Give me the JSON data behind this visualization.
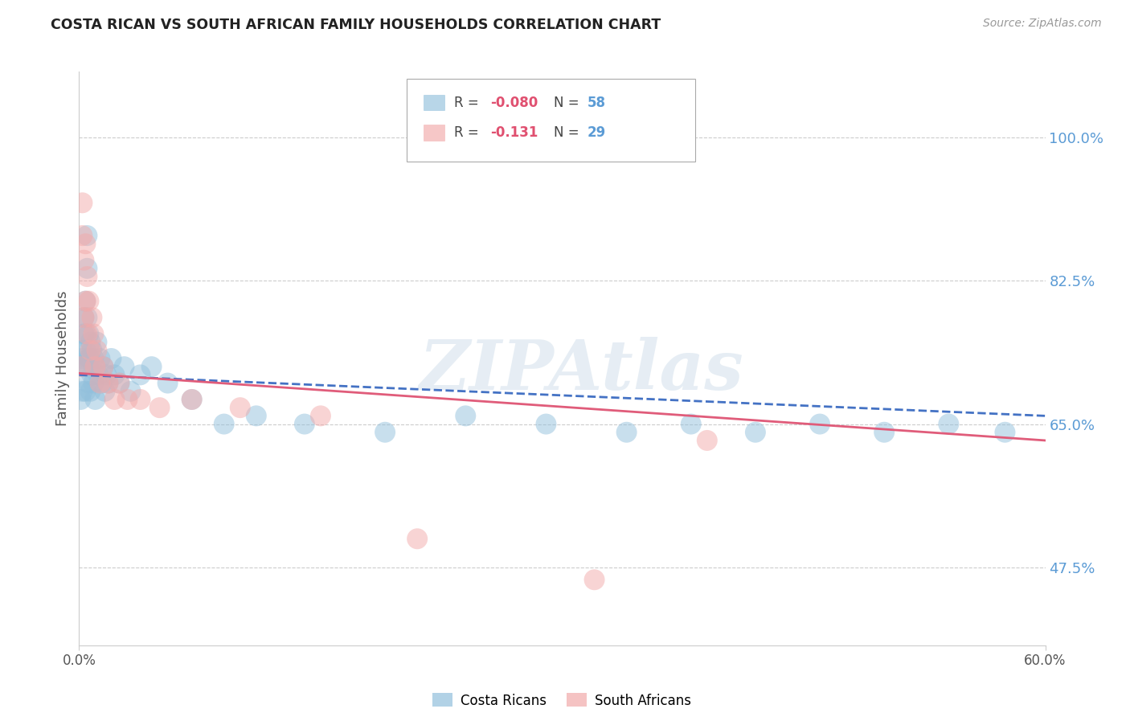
{
  "title": "COSTA RICAN VS SOUTH AFRICAN FAMILY HOUSEHOLDS CORRELATION CHART",
  "source": "Source: ZipAtlas.com",
  "ylabel": "Family Households",
  "watermark": "ZIPAtlas",
  "ytick_labels": [
    "100.0%",
    "82.5%",
    "65.0%",
    "47.5%"
  ],
  "ytick_values": [
    1.0,
    0.825,
    0.65,
    0.475
  ],
  "xmin": 0.0,
  "xmax": 0.6,
  "ymin": 0.38,
  "ymax": 1.08,
  "blue_color": "#92C0DC",
  "pink_color": "#F2AAAA",
  "line_blue": "#4472C4",
  "line_pink": "#E05C7A",
  "costa_rican_x": [
    0.001,
    0.001,
    0.002,
    0.002,
    0.002,
    0.003,
    0.003,
    0.003,
    0.004,
    0.004,
    0.004,
    0.004,
    0.005,
    0.005,
    0.005,
    0.005,
    0.006,
    0.006,
    0.006,
    0.007,
    0.007,
    0.007,
    0.008,
    0.008,
    0.009,
    0.009,
    0.01,
    0.01,
    0.011,
    0.012,
    0.013,
    0.014,
    0.015,
    0.016,
    0.017,
    0.018,
    0.02,
    0.022,
    0.025,
    0.028,
    0.032,
    0.038,
    0.045,
    0.055,
    0.07,
    0.09,
    0.11,
    0.14,
    0.19,
    0.24,
    0.29,
    0.34,
    0.38,
    0.42,
    0.46,
    0.5,
    0.54,
    0.575
  ],
  "costa_rican_y": [
    0.72,
    0.68,
    0.74,
    0.69,
    0.73,
    0.78,
    0.76,
    0.72,
    0.8,
    0.76,
    0.74,
    0.69,
    0.88,
    0.84,
    0.78,
    0.72,
    0.76,
    0.73,
    0.7,
    0.75,
    0.73,
    0.69,
    0.74,
    0.71,
    0.73,
    0.7,
    0.72,
    0.68,
    0.75,
    0.71,
    0.73,
    0.7,
    0.72,
    0.69,
    0.71,
    0.7,
    0.73,
    0.71,
    0.7,
    0.72,
    0.69,
    0.71,
    0.72,
    0.7,
    0.68,
    0.65,
    0.66,
    0.65,
    0.64,
    0.66,
    0.65,
    0.64,
    0.65,
    0.64,
    0.65,
    0.64,
    0.65,
    0.64
  ],
  "south_african_x": [
    0.001,
    0.002,
    0.002,
    0.003,
    0.003,
    0.004,
    0.004,
    0.005,
    0.005,
    0.006,
    0.007,
    0.008,
    0.009,
    0.01,
    0.011,
    0.013,
    0.015,
    0.018,
    0.022,
    0.025,
    0.03,
    0.038,
    0.05,
    0.07,
    0.1,
    0.15,
    0.21,
    0.32,
    0.39
  ],
  "south_african_y": [
    0.72,
    0.92,
    0.88,
    0.85,
    0.78,
    0.87,
    0.8,
    0.83,
    0.76,
    0.8,
    0.74,
    0.78,
    0.76,
    0.72,
    0.74,
    0.7,
    0.72,
    0.7,
    0.68,
    0.7,
    0.68,
    0.68,
    0.67,
    0.68,
    0.67,
    0.66,
    0.51,
    0.46,
    0.63
  ],
  "background_color": "#FFFFFF",
  "grid_color": "#CCCCCC"
}
